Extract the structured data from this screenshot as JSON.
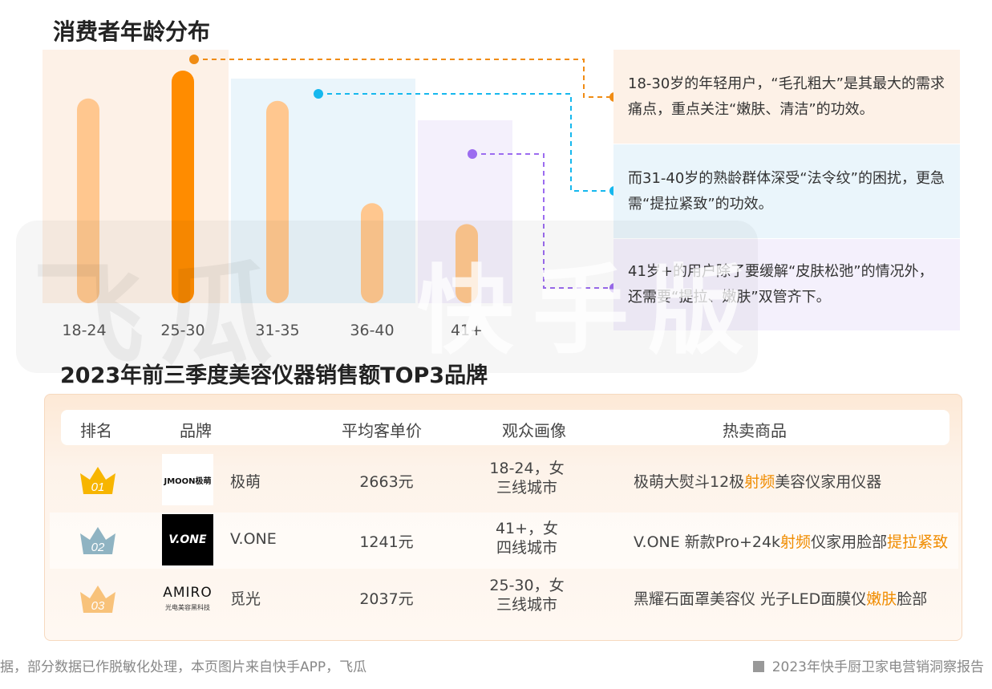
{
  "section1_title": "消费者年龄分布",
  "section2_title": "2023年前三季度美容仪器销售额TOP3品牌",
  "watermark": {
    "left": "飞瓜",
    "right": "快手版"
  },
  "chart_data": {
    "type": "bar",
    "title": "消费者年龄分布",
    "categories": [
      "18-24",
      "25-30",
      "31-35",
      "36-40",
      "41+"
    ],
    "values": [
      88,
      100,
      87,
      43,
      34
    ],
    "highlight_index": 1,
    "colors": {
      "normal": "#ffc78f",
      "highlight": "#ff8c00"
    },
    "ylim": [
      0,
      100
    ],
    "grid": false,
    "legend": "none"
  },
  "panels": [
    {
      "text": "18-30岁的年轻用户，“毛孔粗大”是其最大的需求痛点，重点关注“嫩肤、清洁”的功效。",
      "color": "#f08c14"
    },
    {
      "text": "而31-40岁的熟龄群体深受“法令纹”的困扰，更急需“提拉紧致”的功效。",
      "color": "#16b8ee"
    },
    {
      "text": "41岁+的用户除了要缓解“皮肤松弛”的情况外，还需要“提拉、嫩肤”双管齐下。",
      "color": "#9c6cf0"
    }
  ],
  "table": {
    "headers": [
      "排名",
      "品牌",
      "平均客单价",
      "观众画像",
      "热卖商品"
    ],
    "rows": [
      {
        "rank": "01",
        "rank_color": "#f7b500",
        "logo_text": "JMOON极萌",
        "logo_style": "white",
        "brand": "极萌",
        "price": "2663元",
        "audience_1": "18-24，女",
        "audience_2": "三线城市",
        "product_pre": "极萌大熨斗12极",
        "product_hl1": "射频",
        "product_mid": "美容仪家用仪器",
        "product_hl2": ""
      },
      {
        "rank": "02",
        "rank_color": "#8fb3c2",
        "logo_text": "V.ONE",
        "logo_style": "black",
        "brand": "V.ONE",
        "price": "1241元",
        "audience_1": "41+，女",
        "audience_2": "四线城市",
        "product_pre": "V.ONE 新款Pro+24k",
        "product_hl1": "射频",
        "product_mid": "仪家用脸部",
        "product_hl2": "提拉紧致"
      },
      {
        "rank": "03",
        "rank_color": "#f8c27a",
        "logo_text": "AMIRO",
        "logo_sub": "光电美容黑科技",
        "logo_style": "plain",
        "brand": "觅光",
        "price": "2037元",
        "audience_1": "25-30，女",
        "audience_2": "三线城市",
        "product_pre": "黑耀石面罩美容仪 光子LED面膜仪",
        "product_hl1": "嫩肤",
        "product_mid": "脸部",
        "product_hl2": ""
      }
    ]
  },
  "footer": {
    "left": "据，部分数据已作脱敏化处理，本页图片来自快手APP，飞瓜",
    "right": "2023年快手厨卫家电营销洞察报告"
  }
}
